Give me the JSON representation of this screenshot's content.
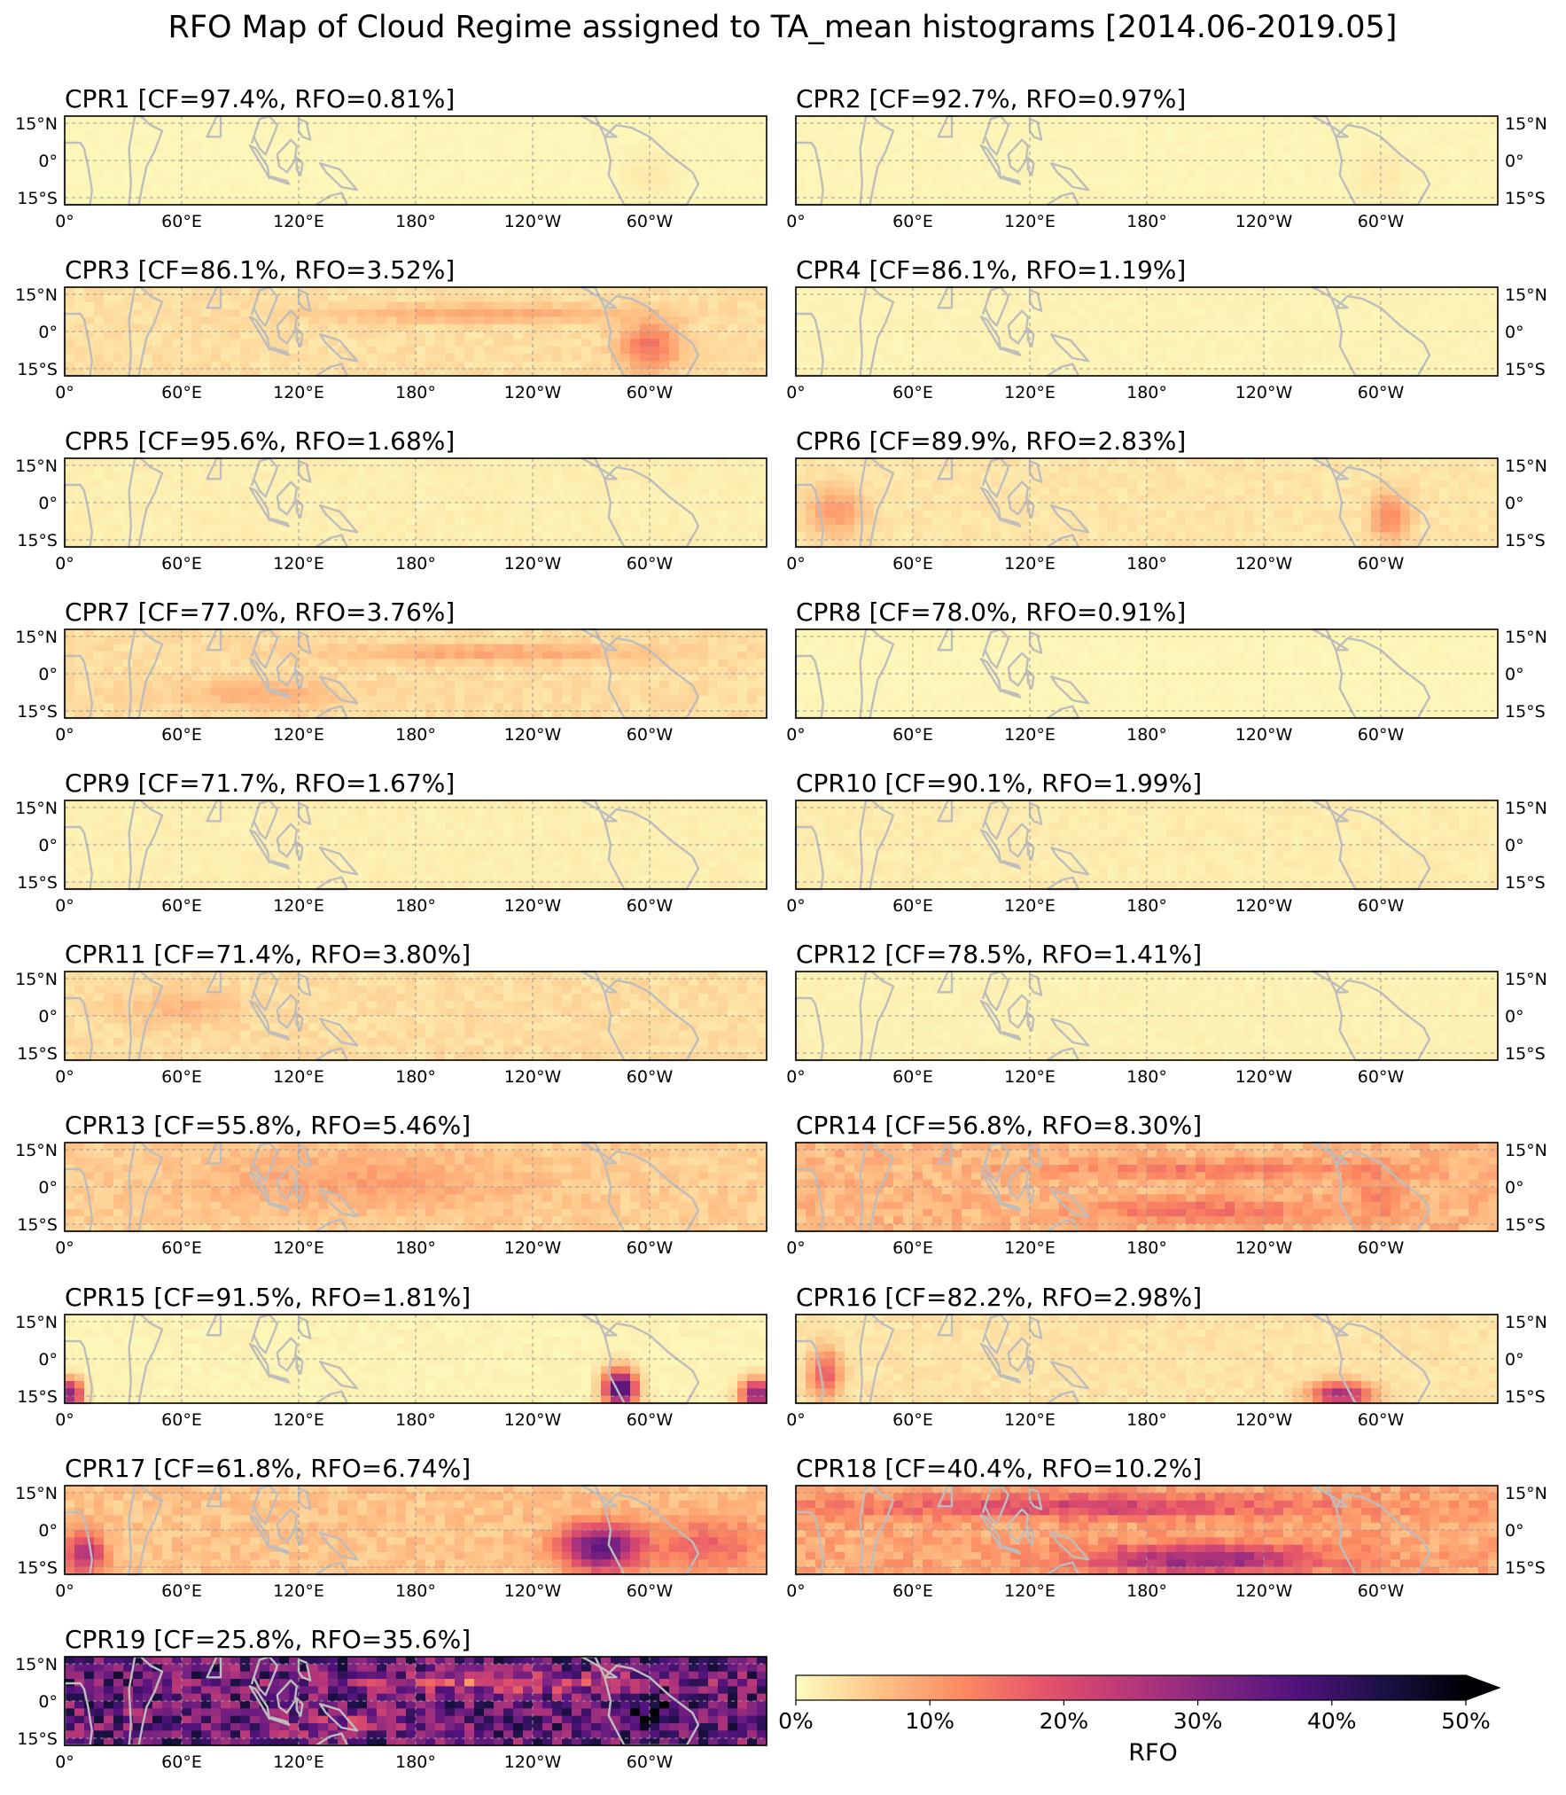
{
  "figure": {
    "title": "RFO Map of Cloud Regime assigned to TA_mean histograms [2014.06-2019.05]"
  },
  "axes_ticks": {
    "x": [
      "0°",
      "60°E",
      "120°E",
      "180°",
      "120°W",
      "60°W"
    ],
    "y": [
      "15°N",
      "0°",
      "15°S"
    ]
  },
  "colorbar": {
    "label": "RFO",
    "ticks": [
      "0%",
      "10%",
      "20%",
      "30%",
      "40%",
      "50%"
    ],
    "colormap": "magma_r",
    "extend": "max",
    "stops": [
      "#fcfdbf",
      "#fec287",
      "#fc8961",
      "#e3526a",
      "#b73779",
      "#812581",
      "#51127c",
      "#1d1147",
      "#000004"
    ]
  },
  "chart_data": {
    "type": "heatmap",
    "x_domain": "longitude 0°–360° (0°, 60°E, 120°E, 180°, 120°W, 60°W)",
    "y_domain": "latitude 15°S–15°N",
    "value_range": [
      0,
      50
    ],
    "value_unit": "%",
    "panels": [
      {
        "title": "CPR1 [CF=97.4%, RFO=0.81%]",
        "rfo": 0.81,
        "cf": 97.4
      },
      {
        "title": "CPR2 [CF=92.7%, RFO=0.97%]",
        "rfo": 0.97,
        "cf": 92.7
      },
      {
        "title": "CPR3 [CF=86.1%, RFO=3.52%]",
        "rfo": 3.52,
        "cf": 86.1
      },
      {
        "title": "CPR4 [CF=86.1%, RFO=1.19%]",
        "rfo": 1.19,
        "cf": 86.1
      },
      {
        "title": "CPR5 [CF=95.6%, RFO=1.68%]",
        "rfo": 1.68,
        "cf": 95.6
      },
      {
        "title": "CPR6 [CF=89.9%, RFO=2.83%]",
        "rfo": 2.83,
        "cf": 89.9
      },
      {
        "title": "CPR7 [CF=77.0%, RFO=3.76%]",
        "rfo": 3.76,
        "cf": 77.0
      },
      {
        "title": "CPR8 [CF=78.0%, RFO=0.91%]",
        "rfo": 0.91,
        "cf": 78.0
      },
      {
        "title": "CPR9 [CF=71.7%, RFO=1.67%]",
        "rfo": 1.67,
        "cf": 71.7
      },
      {
        "title": "CPR10 [CF=90.1%, RFO=1.99%]",
        "rfo": 1.99,
        "cf": 90.1
      },
      {
        "title": "CPR11 [CF=71.4%, RFO=3.80%]",
        "rfo": 3.8,
        "cf": 71.4
      },
      {
        "title": "CPR12 [CF=78.5%, RFO=1.41%]",
        "rfo": 1.41,
        "cf": 78.5
      },
      {
        "title": "CPR13 [CF=55.8%, RFO=5.46%]",
        "rfo": 5.46,
        "cf": 55.8
      },
      {
        "title": "CPR14 [CF=56.8%, RFO=8.30%]",
        "rfo": 8.3,
        "cf": 56.8
      },
      {
        "title": "CPR15 [CF=91.5%, RFO=1.81%]",
        "rfo": 1.81,
        "cf": 91.5
      },
      {
        "title": "CPR16 [CF=82.2%, RFO=2.98%]",
        "rfo": 2.98,
        "cf": 82.2
      },
      {
        "title": "CPR17 [CF=61.8%, RFO=6.74%]",
        "rfo": 6.74,
        "cf": 61.8
      },
      {
        "title": "CPR18 [CF=40.4%, RFO=10.2%]",
        "rfo": 10.2,
        "cf": 40.4
      },
      {
        "title": "CPR19 [CF=25.8%, RFO=35.6%]",
        "rfo": 35.6,
        "cf": 25.8
      }
    ]
  }
}
